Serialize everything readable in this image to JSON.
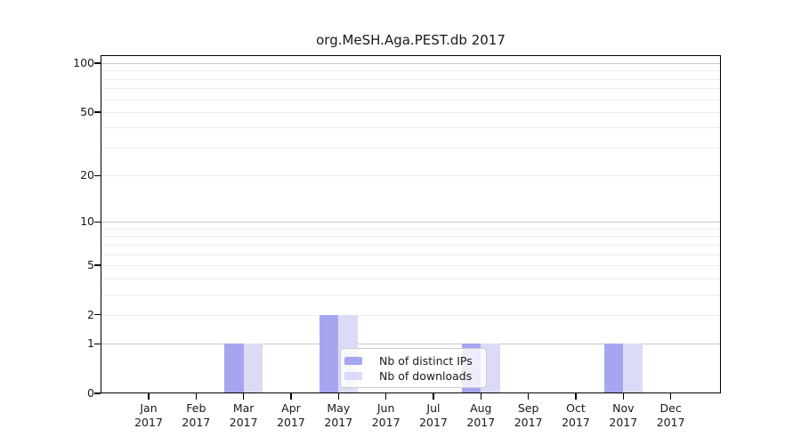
{
  "title": "org.MeSH.Aga.PEST.db 2017",
  "colors": {
    "background": "#ffffff",
    "spine": "#000000",
    "text": "#191919",
    "major_grid": "#c9c9c9",
    "minor_grid": "#ededed"
  },
  "chart_data": {
    "type": "bar",
    "title": "org.MeSH.Aga.PEST.db 2017",
    "categories": [
      "Jan",
      "Feb",
      "Mar",
      "Apr",
      "May",
      "Jun",
      "Jul",
      "Aug",
      "Sep",
      "Oct",
      "Nov",
      "Dec"
    ],
    "year_label": "2017",
    "series": [
      {
        "name": "Nb of distinct IPs",
        "color": "#a6a6f0",
        "values": [
          0,
          0,
          1,
          0,
          2,
          0,
          0,
          1,
          0,
          0,
          1,
          0
        ]
      },
      {
        "name": "Nb of downloads",
        "color": "#dbdbf8",
        "values": [
          0,
          0,
          1,
          0,
          2,
          0,
          0,
          1,
          0,
          0,
          1,
          0
        ]
      }
    ],
    "yscale": "log1p",
    "ylim": [
      0,
      112
    ],
    "ytick_labels": [
      100,
      50,
      20,
      10,
      5,
      2,
      1,
      0
    ],
    "y_major_gridlines": [
      1,
      10,
      100
    ],
    "y_minor_gridlines": [
      2,
      3,
      4,
      5,
      6,
      7,
      8,
      9,
      20,
      30,
      40,
      50,
      60,
      70,
      80,
      90
    ],
    "grid": true,
    "xlabel": "",
    "ylabel": "",
    "legend_position": "lower-center-inside"
  }
}
